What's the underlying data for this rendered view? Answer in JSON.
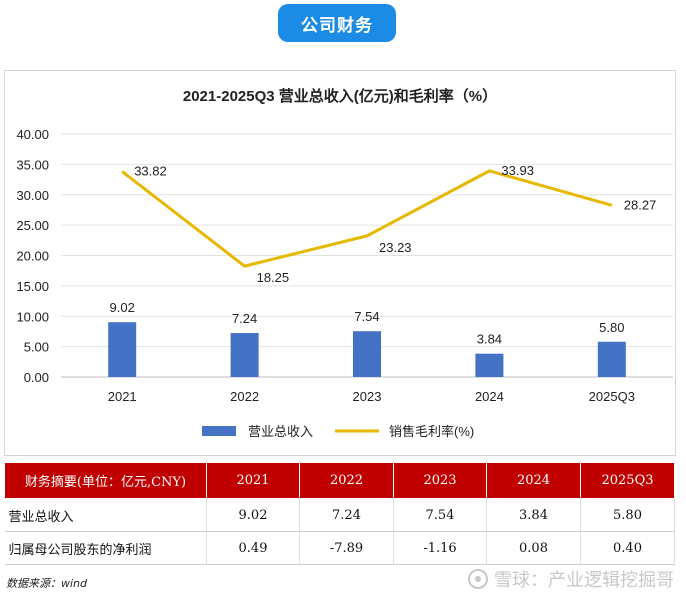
{
  "header": {
    "badge": "公司财务"
  },
  "chart_data": {
    "type": "bar",
    "title": "2021-2025Q3 营业总收入(亿元)和毛利率（%）",
    "categories": [
      "2021",
      "2022",
      "2023",
      "2024",
      "2025Q3"
    ],
    "ylim": [
      0,
      40
    ],
    "yticks": [
      "0.00",
      "5.00",
      "10.00",
      "15.00",
      "20.00",
      "25.00",
      "30.00",
      "35.00",
      "40.00"
    ],
    "grid": true,
    "legend_position": "bottom",
    "series": [
      {
        "name": "营业总收入",
        "type": "bar",
        "color": "#4472c4",
        "values": [
          9.02,
          7.24,
          7.54,
          3.84,
          5.8
        ],
        "labels": [
          "9.02",
          "7.24",
          "7.54",
          "3.84",
          "5.80"
        ]
      },
      {
        "name": "销售毛利率(%)",
        "type": "line",
        "color": "#e6b800",
        "values": [
          33.82,
          18.25,
          23.23,
          33.93,
          28.27
        ],
        "labels": [
          "33.82",
          "18.25",
          "23.23",
          "33.93",
          "28.27"
        ]
      }
    ]
  },
  "table": {
    "headers": [
      "财务摘要(单位：亿元,CNY)",
      "2021",
      "2022",
      "2023",
      "2024",
      "2025Q3"
    ],
    "rows": [
      {
        "label": "营业总收入",
        "values": [
          "9.02",
          "7.24",
          "7.54",
          "3.84",
          "5.80"
        ]
      },
      {
        "label": "归属母公司股东的净利润",
        "values": [
          "0.49",
          "-7.89",
          "-1.16",
          "0.08",
          "0.40"
        ]
      }
    ]
  },
  "footer": {
    "source": "数据来源：wind",
    "watermark": "雪球：产业逻辑挖掘哥"
  }
}
